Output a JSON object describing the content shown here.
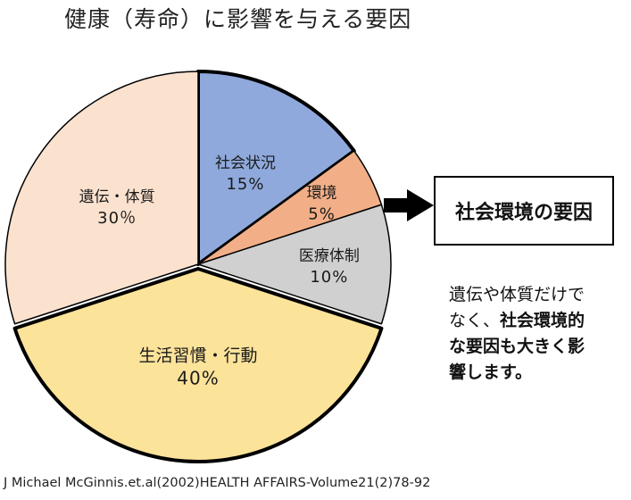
{
  "title": "健康（寿命）に影響を与える要因",
  "chart_data": {
    "type": "pie",
    "categories": [
      "社会状況",
      "環境",
      "医療体制",
      "生活習慣・行動",
      "遺伝・体質"
    ],
    "values": [
      15,
      5,
      10,
      40,
      30
    ],
    "value_labels": [
      "15%",
      "5%",
      "10%",
      "40%",
      "30％"
    ],
    "colors": [
      "#8FA9DC",
      "#F2AF87",
      "#D0D0D0",
      "#FCE39A",
      "#FBE2CF"
    ],
    "outline_color": "#000000"
  },
  "callout": {
    "label": "社会環境の要因"
  },
  "note": {
    "line1": "遺伝や体質だけで",
    "line2_plain": "なく、",
    "line2_bold": "社会環境的",
    "line3_bold": "な要因も大きく影",
    "line4_bold": "響します。"
  },
  "source": "J Michael McGinnis.et.al(2002)HEALTH AFFAIRS-Volume21(2)78-92"
}
